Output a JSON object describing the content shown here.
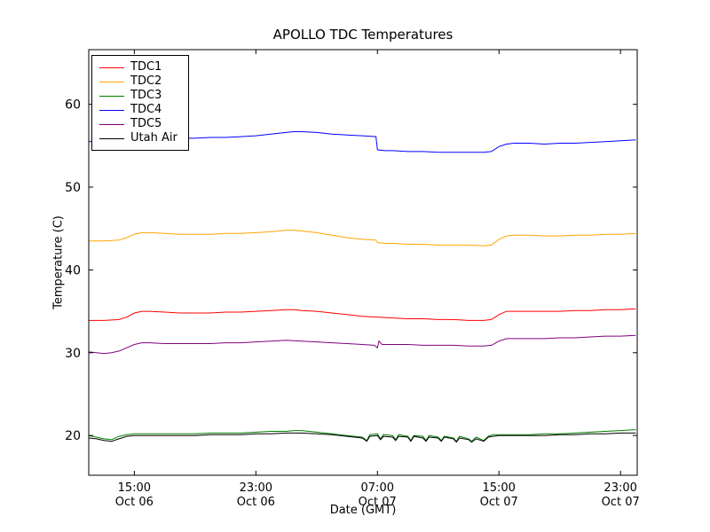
{
  "chart_data": {
    "type": "line",
    "title": "APOLLO TDC Temperatures",
    "xlabel": "Date (GMT)",
    "ylabel": "Temperature (C)",
    "xlim_hours_from_oct06_1200": [
      0,
      36.1
    ],
    "ylim": [
      15.2,
      66.6
    ],
    "yticks": [
      20,
      30,
      40,
      50,
      60
    ],
    "xticks": [
      {
        "hour": 3,
        "time": "15:00",
        "date": "Oct 06"
      },
      {
        "hour": 11,
        "time": "23:00",
        "date": "Oct 06"
      },
      {
        "hour": 19,
        "time": "07:00",
        "date": "Oct 07"
      },
      {
        "hour": 27,
        "time": "15:00",
        "date": "Oct 07"
      },
      {
        "hour": 35,
        "time": "23:00",
        "date": "Oct 07"
      }
    ],
    "legend_position": "upper left",
    "grid": false,
    "series": [
      {
        "name": "TDC1",
        "color": "#ff0000",
        "points": [
          [
            0,
            33.9
          ],
          [
            1,
            33.9
          ],
          [
            2,
            34.0
          ],
          [
            2.5,
            34.3
          ],
          [
            3,
            34.8
          ],
          [
            3.5,
            35.0
          ],
          [
            4,
            35.0
          ],
          [
            5,
            34.9
          ],
          [
            6,
            34.8
          ],
          [
            7,
            34.8
          ],
          [
            8,
            34.8
          ],
          [
            9,
            34.9
          ],
          [
            10,
            34.9
          ],
          [
            11,
            35.0
          ],
          [
            12,
            35.1
          ],
          [
            13,
            35.2
          ],
          [
            13.5,
            35.2
          ],
          [
            14,
            35.1
          ],
          [
            15,
            35.0
          ],
          [
            16,
            34.8
          ],
          [
            17,
            34.6
          ],
          [
            18,
            34.4
          ],
          [
            19,
            34.3
          ],
          [
            20,
            34.2
          ],
          [
            21,
            34.1
          ],
          [
            22,
            34.1
          ],
          [
            23,
            34.0
          ],
          [
            24,
            34.0
          ],
          [
            25,
            33.9
          ],
          [
            26,
            33.9
          ],
          [
            26.5,
            34.0
          ],
          [
            27,
            34.6
          ],
          [
            27.5,
            35.0
          ],
          [
            28,
            35.0
          ],
          [
            29,
            35.0
          ],
          [
            30,
            35.0
          ],
          [
            31,
            35.0
          ],
          [
            32,
            35.1
          ],
          [
            33,
            35.1
          ],
          [
            34,
            35.2
          ],
          [
            35,
            35.2
          ],
          [
            36,
            35.3
          ]
        ]
      },
      {
        "name": "TDC2",
        "color": "#ffa500",
        "points": [
          [
            0,
            43.5
          ],
          [
            1,
            43.5
          ],
          [
            2,
            43.6
          ],
          [
            2.5,
            43.9
          ],
          [
            3,
            44.3
          ],
          [
            3.5,
            44.5
          ],
          [
            4,
            44.5
          ],
          [
            5,
            44.4
          ],
          [
            6,
            44.3
          ],
          [
            7,
            44.3
          ],
          [
            8,
            44.3
          ],
          [
            9,
            44.4
          ],
          [
            10,
            44.4
          ],
          [
            11,
            44.5
          ],
          [
            12,
            44.6
          ],
          [
            13,
            44.8
          ],
          [
            13.5,
            44.8
          ],
          [
            14,
            44.7
          ],
          [
            15,
            44.5
          ],
          [
            16,
            44.2
          ],
          [
            17,
            43.9
          ],
          [
            18,
            43.7
          ],
          [
            18.9,
            43.6
          ],
          [
            19,
            43.3
          ],
          [
            19.5,
            43.2
          ],
          [
            20,
            43.2
          ],
          [
            21,
            43.1
          ],
          [
            22,
            43.1
          ],
          [
            23,
            43.0
          ],
          [
            24,
            43.0
          ],
          [
            25,
            43.0
          ],
          [
            26,
            42.9
          ],
          [
            26.5,
            43.0
          ],
          [
            27,
            43.7
          ],
          [
            27.5,
            44.1
          ],
          [
            28,
            44.2
          ],
          [
            29,
            44.2
          ],
          [
            30,
            44.1
          ],
          [
            31,
            44.1
          ],
          [
            32,
            44.2
          ],
          [
            33,
            44.2
          ],
          [
            34,
            44.3
          ],
          [
            35,
            44.3
          ],
          [
            36,
            44.4
          ]
        ]
      },
      {
        "name": "TDC3",
        "color": "#008000",
        "points": [
          [
            0,
            20.0
          ],
          [
            0.5,
            19.8
          ],
          [
            1,
            19.6
          ],
          [
            1.5,
            19.5
          ],
          [
            2,
            19.9
          ],
          [
            2.5,
            20.1
          ],
          [
            3,
            20.2
          ],
          [
            4,
            20.2
          ],
          [
            5,
            20.2
          ],
          [
            6,
            20.2
          ],
          [
            7,
            20.2
          ],
          [
            8,
            20.3
          ],
          [
            9,
            20.3
          ],
          [
            10,
            20.3
          ],
          [
            11,
            20.4
          ],
          [
            12,
            20.5
          ],
          [
            13,
            20.5
          ],
          [
            13.5,
            20.6
          ],
          [
            14,
            20.6
          ],
          [
            15,
            20.4
          ],
          [
            16,
            20.2
          ],
          [
            17,
            20.0
          ],
          [
            17.5,
            19.9
          ],
          [
            18,
            19.8
          ],
          [
            18.3,
            19.4
          ],
          [
            18.5,
            20.1
          ],
          [
            19,
            20.2
          ],
          [
            19.2,
            19.6
          ],
          [
            19.4,
            20.1
          ],
          [
            20,
            20.0
          ],
          [
            20.2,
            19.5
          ],
          [
            20.4,
            20.1
          ],
          [
            21,
            19.9
          ],
          [
            21.2,
            19.4
          ],
          [
            21.4,
            20.0
          ],
          [
            22,
            19.9
          ],
          [
            22.2,
            19.4
          ],
          [
            22.4,
            20.0
          ],
          [
            23,
            19.8
          ],
          [
            23.2,
            19.4
          ],
          [
            23.4,
            19.9
          ],
          [
            24,
            19.7
          ],
          [
            24.2,
            19.3
          ],
          [
            24.4,
            19.9
          ],
          [
            25,
            19.6
          ],
          [
            25.2,
            19.3
          ],
          [
            25.5,
            19.8
          ],
          [
            26,
            19.4
          ],
          [
            26.3,
            19.9
          ],
          [
            26.6,
            20.1
          ],
          [
            27,
            20.1
          ],
          [
            28,
            20.1
          ],
          [
            29,
            20.1
          ],
          [
            30,
            20.2
          ],
          [
            31,
            20.2
          ],
          [
            32,
            20.3
          ],
          [
            33,
            20.4
          ],
          [
            34,
            20.5
          ],
          [
            35,
            20.6
          ],
          [
            36,
            20.7
          ]
        ]
      },
      {
        "name": "TDC4",
        "color": "#0000ff",
        "points": [
          [
            0,
            55.5
          ],
          [
            1,
            55.5
          ],
          [
            2,
            55.6
          ],
          [
            3,
            55.7
          ],
          [
            4,
            55.8
          ],
          [
            5,
            55.8
          ],
          [
            6,
            55.9
          ],
          [
            7,
            55.9
          ],
          [
            8,
            56.0
          ],
          [
            9,
            56.0
          ],
          [
            10,
            56.1
          ],
          [
            11,
            56.2
          ],
          [
            12,
            56.4
          ],
          [
            13,
            56.6
          ],
          [
            13.5,
            56.7
          ],
          [
            14,
            56.7
          ],
          [
            15,
            56.6
          ],
          [
            16,
            56.4
          ],
          [
            17,
            56.3
          ],
          [
            18,
            56.2
          ],
          [
            18.9,
            56.1
          ],
          [
            19,
            54.5
          ],
          [
            19.5,
            54.4
          ],
          [
            20,
            54.4
          ],
          [
            21,
            54.3
          ],
          [
            22,
            54.3
          ],
          [
            23,
            54.2
          ],
          [
            24,
            54.2
          ],
          [
            25,
            54.2
          ],
          [
            26,
            54.2
          ],
          [
            26.5,
            54.3
          ],
          [
            27,
            54.9
          ],
          [
            27.5,
            55.2
          ],
          [
            28,
            55.3
          ],
          [
            29,
            55.3
          ],
          [
            30,
            55.2
          ],
          [
            31,
            55.3
          ],
          [
            32,
            55.3
          ],
          [
            33,
            55.4
          ],
          [
            34,
            55.5
          ],
          [
            35,
            55.6
          ],
          [
            36,
            55.7
          ]
        ]
      },
      {
        "name": "TDC5",
        "color": "#800080",
        "points": [
          [
            0,
            30.1
          ],
          [
            0.5,
            30.0
          ],
          [
            1,
            29.9
          ],
          [
            1.5,
            30.0
          ],
          [
            2,
            30.2
          ],
          [
            2.5,
            30.6
          ],
          [
            3,
            31.0
          ],
          [
            3.5,
            31.2
          ],
          [
            4,
            31.2
          ],
          [
            5,
            31.1
          ],
          [
            6,
            31.1
          ],
          [
            7,
            31.1
          ],
          [
            8,
            31.1
          ],
          [
            9,
            31.2
          ],
          [
            10,
            31.2
          ],
          [
            11,
            31.3
          ],
          [
            12,
            31.4
          ],
          [
            13,
            31.5
          ],
          [
            14,
            31.4
          ],
          [
            15,
            31.3
          ],
          [
            16,
            31.2
          ],
          [
            17,
            31.1
          ],
          [
            18,
            31.0
          ],
          [
            18.8,
            30.9
          ],
          [
            19,
            30.6
          ],
          [
            19.1,
            31.4
          ],
          [
            19.3,
            31.0
          ],
          [
            20,
            31.0
          ],
          [
            21,
            31.0
          ],
          [
            22,
            30.9
          ],
          [
            23,
            30.9
          ],
          [
            24,
            30.9
          ],
          [
            25,
            30.8
          ],
          [
            26,
            30.8
          ],
          [
            26.5,
            30.9
          ],
          [
            27,
            31.4
          ],
          [
            27.5,
            31.7
          ],
          [
            28,
            31.7
          ],
          [
            29,
            31.7
          ],
          [
            30,
            31.7
          ],
          [
            31,
            31.8
          ],
          [
            32,
            31.8
          ],
          [
            33,
            31.9
          ],
          [
            34,
            32.0
          ],
          [
            35,
            32.0
          ],
          [
            36,
            32.1
          ]
        ]
      },
      {
        "name": "Utah Air",
        "color": "#000000",
        "points": [
          [
            0,
            19.7
          ],
          [
            0.5,
            19.6
          ],
          [
            1,
            19.4
          ],
          [
            1.5,
            19.3
          ],
          [
            2,
            19.6
          ],
          [
            2.5,
            19.9
          ],
          [
            3,
            20.0
          ],
          [
            4,
            20.0
          ],
          [
            5,
            20.0
          ],
          [
            6,
            20.0
          ],
          [
            7,
            20.0
          ],
          [
            8,
            20.1
          ],
          [
            9,
            20.1
          ],
          [
            10,
            20.1
          ],
          [
            11,
            20.2
          ],
          [
            12,
            20.2
          ],
          [
            13,
            20.3
          ],
          [
            14,
            20.3
          ],
          [
            15,
            20.2
          ],
          [
            16,
            20.1
          ],
          [
            17,
            19.9
          ],
          [
            18,
            19.7
          ],
          [
            18.3,
            19.3
          ],
          [
            18.5,
            19.9
          ],
          [
            19,
            20.0
          ],
          [
            19.2,
            19.5
          ],
          [
            19.4,
            19.9
          ],
          [
            20,
            19.8
          ],
          [
            20.2,
            19.4
          ],
          [
            20.4,
            19.9
          ],
          [
            21,
            19.8
          ],
          [
            21.2,
            19.3
          ],
          [
            21.4,
            19.9
          ],
          [
            22,
            19.7
          ],
          [
            22.2,
            19.3
          ],
          [
            22.4,
            19.8
          ],
          [
            23,
            19.7
          ],
          [
            23.2,
            19.3
          ],
          [
            23.4,
            19.8
          ],
          [
            24,
            19.6
          ],
          [
            24.2,
            19.2
          ],
          [
            24.4,
            19.7
          ],
          [
            25,
            19.5
          ],
          [
            25.2,
            19.2
          ],
          [
            25.5,
            19.6
          ],
          [
            26,
            19.3
          ],
          [
            26.3,
            19.8
          ],
          [
            26.6,
            19.9
          ],
          [
            27,
            20.0
          ],
          [
            28,
            20.0
          ],
          [
            29,
            20.0
          ],
          [
            30,
            20.0
          ],
          [
            31,
            20.1
          ],
          [
            32,
            20.1
          ],
          [
            33,
            20.2
          ],
          [
            34,
            20.2
          ],
          [
            35,
            20.3
          ],
          [
            36,
            20.3
          ]
        ]
      }
    ]
  }
}
